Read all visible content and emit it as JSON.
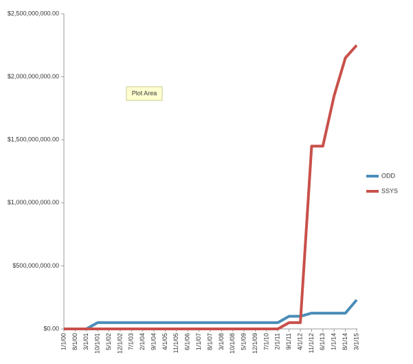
{
  "chart_data": {
    "type": "line",
    "annotation": "Plot Area",
    "categories": [
      "1/1/00",
      "8/1/00",
      "3/1/01",
      "10/1/01",
      "5/1/02",
      "12/1/02",
      "7/1/03",
      "2/1/04",
      "9/1/04",
      "4/1/05",
      "11/1/05",
      "6/1/06",
      "1/1/07",
      "8/1/07",
      "3/1/08",
      "10/1/08",
      "5/1/09",
      "12/1/09",
      "7/1/10",
      "2/1/11",
      "9/1/11",
      "4/1/12",
      "11/1/12",
      "6/1/13",
      "1/1/14",
      "8/1/14",
      "3/1/15"
    ],
    "series": [
      {
        "name": "ODD",
        "color": "#4a8db8",
        "values": [
          0,
          0,
          0,
          50000000,
          50000000,
          50000000,
          50000000,
          50000000,
          50000000,
          50000000,
          50000000,
          50000000,
          50000000,
          50000000,
          50000000,
          50000000,
          50000000,
          50000000,
          50000000,
          50000000,
          100000000,
          100000000,
          125000000,
          125000000,
          125000000,
          125000000,
          230000000
        ]
      },
      {
        "name": "SSYS",
        "color": "#c9504a",
        "values": [
          0,
          0,
          0,
          0,
          0,
          0,
          0,
          0,
          0,
          0,
          0,
          0,
          0,
          0,
          0,
          0,
          0,
          0,
          0,
          0,
          50000000,
          50000000,
          1450000000,
          1450000000,
          1850000000,
          2150000000,
          2250000000
        ]
      }
    ],
    "ylim": [
      0,
      2500000000
    ],
    "yticks": [
      {
        "value": 0,
        "label": "$0.00"
      },
      {
        "value": 500000000,
        "label": "$500,000,000.00"
      },
      {
        "value": 1000000000,
        "label": "$1,000,000,000.00"
      },
      {
        "value": 1500000000,
        "label": "$1,500,000,000.00"
      },
      {
        "value": 2000000000,
        "label": "$2,000,000,000.00"
      },
      {
        "value": 2500000000,
        "label": "$2,500,000,000.00"
      }
    ],
    "legend": "right"
  }
}
